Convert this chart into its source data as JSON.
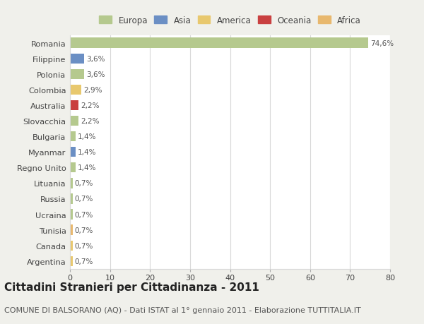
{
  "categories": [
    "Romania",
    "Filippine",
    "Polonia",
    "Colombia",
    "Australia",
    "Slovacchia",
    "Bulgaria",
    "Myanmar",
    "Regno Unito",
    "Lituania",
    "Russia",
    "Ucraina",
    "Tunisia",
    "Canada",
    "Argentina"
  ],
  "values": [
    74.6,
    3.6,
    3.6,
    2.9,
    2.2,
    2.2,
    1.4,
    1.4,
    1.4,
    0.7,
    0.7,
    0.7,
    0.7,
    0.7,
    0.7
  ],
  "labels": [
    "74,6%",
    "3,6%",
    "3,6%",
    "2,9%",
    "2,2%",
    "2,2%",
    "1,4%",
    "1,4%",
    "1,4%",
    "0,7%",
    "0,7%",
    "0,7%",
    "0,7%",
    "0,7%",
    "0,7%"
  ],
  "colors": [
    "#b5c98e",
    "#6b8fc4",
    "#b5c98e",
    "#e8c86e",
    "#c94040",
    "#b5c98e",
    "#b5c98e",
    "#6b8fc4",
    "#b5c98e",
    "#b5c98e",
    "#b5c98e",
    "#b5c98e",
    "#e8b86e",
    "#e8c86e",
    "#e8c86e"
  ],
  "legend_labels": [
    "Europa",
    "Asia",
    "America",
    "Oceania",
    "Africa"
  ],
  "legend_colors": [
    "#b5c98e",
    "#6b8fc4",
    "#e8c86e",
    "#c94040",
    "#e8b86e"
  ],
  "xlim": [
    0,
    80
  ],
  "xticks": [
    0,
    10,
    20,
    30,
    40,
    50,
    60,
    70,
    80
  ],
  "title": "Cittadini Stranieri per Cittadinanza - 2011",
  "subtitle": "COMUNE DI BALSORANO (AQ) - Dati ISTAT al 1° gennaio 2011 - Elaborazione TUTTITALIA.IT",
  "figure_bg": "#f0f0eb",
  "plot_bg": "#ffffff",
  "grid_color": "#d8d8d8",
  "title_fontsize": 11,
  "subtitle_fontsize": 8,
  "bar_height": 0.65
}
